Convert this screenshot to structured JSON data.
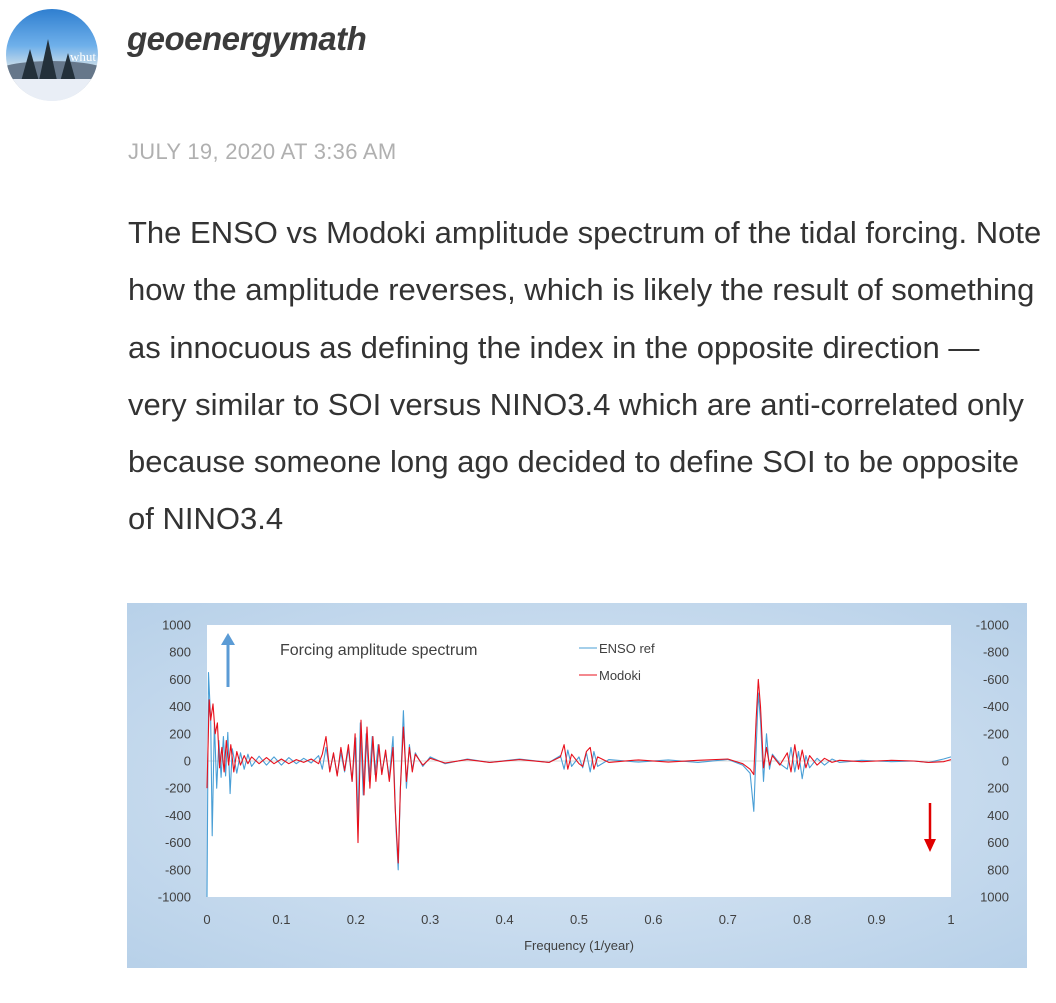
{
  "comment": {
    "author": "geoenergymath",
    "avatar_tag": "whut",
    "date": "JULY 19, 2020 AT 3:36 AM",
    "text": "The ENSO vs Modoki amplitude spectrum of the tidal forcing. Note how the amplitude reverses, which is likely the result of something as innocuous as defining the index in the opposite direction — very similar to SOI versus NINO3.4 which are anti-correlated only because someone long ago decided to define SOI to be opposite of NINO3.4"
  },
  "colors": {
    "enso": "#4a9fd6",
    "modoki": "#e8101c",
    "up_arrow": "#5b9bd5",
    "down_arrow": "#e00000"
  },
  "chart_data": {
    "type": "line",
    "title": "Forcing amplitude spectrum",
    "xlabel": "Frequency (1/year)",
    "ylabel": "",
    "xlim": [
      0,
      1
    ],
    "ylim": [
      -1000,
      1000
    ],
    "ylim_right": [
      1000,
      -1000
    ],
    "x_ticks": [
      "0",
      "0.1",
      "0.2",
      "0.3",
      "0.4",
      "0.5",
      "0.6",
      "0.7",
      "0.8",
      "0.9",
      "1"
    ],
    "y_ticks_left": [
      "1000",
      "800",
      "600",
      "400",
      "200",
      "0",
      "-200",
      "-400",
      "-600",
      "-800",
      "-1000"
    ],
    "y_ticks_right": [
      "-1000",
      "-800",
      "-600",
      "-400",
      "-200",
      "0",
      "200",
      "400",
      "600",
      "800",
      "1000"
    ],
    "grid": false,
    "legend_position": "top-center",
    "series": [
      {
        "name": "ENSO ref",
        "axis": "left",
        "points": [
          [
            0.0,
            -1000
          ],
          [
            0.002,
            650
          ],
          [
            0.005,
            300
          ],
          [
            0.007,
            -550
          ],
          [
            0.01,
            280
          ],
          [
            0.013,
            -200
          ],
          [
            0.016,
            150
          ],
          [
            0.019,
            -120
          ],
          [
            0.022,
            180
          ],
          [
            0.025,
            -110
          ],
          [
            0.028,
            210
          ],
          [
            0.031,
            -240
          ],
          [
            0.034,
            90
          ],
          [
            0.04,
            -90
          ],
          [
            0.045,
            60
          ],
          [
            0.05,
            -60
          ],
          [
            0.055,
            50
          ],
          [
            0.06,
            -40
          ],
          [
            0.07,
            35
          ],
          [
            0.08,
            -30
          ],
          [
            0.09,
            30
          ],
          [
            0.1,
            -30
          ],
          [
            0.11,
            25
          ],
          [
            0.12,
            -20
          ],
          [
            0.13,
            20
          ],
          [
            0.14,
            -15
          ],
          [
            0.15,
            40
          ],
          [
            0.155,
            -60
          ],
          [
            0.16,
            100
          ],
          [
            0.165,
            -70
          ],
          [
            0.17,
            50
          ],
          [
            0.175,
            -100
          ],
          [
            0.18,
            60
          ],
          [
            0.185,
            -80
          ],
          [
            0.19,
            90
          ],
          [
            0.195,
            -150
          ],
          [
            0.2,
            170
          ],
          [
            0.203,
            -450
          ],
          [
            0.206,
            280
          ],
          [
            0.21,
            -250
          ],
          [
            0.214,
            200
          ],
          [
            0.218,
            -150
          ],
          [
            0.222,
            180
          ],
          [
            0.226,
            -100
          ],
          [
            0.23,
            120
          ],
          [
            0.235,
            -80
          ],
          [
            0.24,
            60
          ],
          [
            0.245,
            -120
          ],
          [
            0.25,
            180
          ],
          [
            0.254,
            -500
          ],
          [
            0.257,
            -800
          ],
          [
            0.26,
            -200
          ],
          [
            0.264,
            370
          ],
          [
            0.268,
            -200
          ],
          [
            0.272,
            120
          ],
          [
            0.276,
            -70
          ],
          [
            0.28,
            60
          ],
          [
            0.29,
            -40
          ],
          [
            0.3,
            30
          ],
          [
            0.32,
            -20
          ],
          [
            0.35,
            15
          ],
          [
            0.38,
            -10
          ],
          [
            0.42,
            15
          ],
          [
            0.46,
            -10
          ],
          [
            0.475,
            40
          ],
          [
            0.48,
            -60
          ],
          [
            0.485,
            80
          ],
          [
            0.49,
            -40
          ],
          [
            0.5,
            30
          ],
          [
            0.505,
            -50
          ],
          [
            0.51,
            60
          ],
          [
            0.515,
            -80
          ],
          [
            0.52,
            70
          ],
          [
            0.525,
            -40
          ],
          [
            0.54,
            10
          ],
          [
            0.58,
            -8
          ],
          [
            0.62,
            8
          ],
          [
            0.66,
            -10
          ],
          [
            0.7,
            12
          ],
          [
            0.72,
            -30
          ],
          [
            0.73,
            -90
          ],
          [
            0.735,
            -370
          ],
          [
            0.738,
            80
          ],
          [
            0.741,
            500
          ],
          [
            0.744,
            300
          ],
          [
            0.748,
            -150
          ],
          [
            0.752,
            200
          ],
          [
            0.756,
            -60
          ],
          [
            0.76,
            50
          ],
          [
            0.77,
            -20
          ],
          [
            0.78,
            -60
          ],
          [
            0.785,
            100
          ],
          [
            0.79,
            -80
          ],
          [
            0.795,
            70
          ],
          [
            0.8,
            -130
          ],
          [
            0.805,
            40
          ],
          [
            0.81,
            -50
          ],
          [
            0.82,
            20
          ],
          [
            0.83,
            -30
          ],
          [
            0.84,
            15
          ],
          [
            0.85,
            -10
          ],
          [
            0.88,
            5
          ],
          [
            0.92,
            -5
          ],
          [
            0.95,
            0
          ],
          [
            0.97,
            -10
          ],
          [
            0.99,
            15
          ],
          [
            1.0,
            30
          ]
        ]
      },
      {
        "name": "Modoki",
        "axis": "right",
        "points": [
          [
            0.0,
            200
          ],
          [
            0.003,
            -450
          ],
          [
            0.005,
            -300
          ],
          [
            0.008,
            -420
          ],
          [
            0.011,
            -200
          ],
          [
            0.014,
            -280
          ],
          [
            0.017,
            50
          ],
          [
            0.02,
            -100
          ],
          [
            0.023,
            80
          ],
          [
            0.026,
            -150
          ],
          [
            0.029,
            30
          ],
          [
            0.032,
            -120
          ],
          [
            0.036,
            80
          ],
          [
            0.04,
            -70
          ],
          [
            0.045,
            30
          ],
          [
            0.05,
            -40
          ],
          [
            0.055,
            20
          ],
          [
            0.06,
            -30
          ],
          [
            0.07,
            20
          ],
          [
            0.08,
            -25
          ],
          [
            0.09,
            20
          ],
          [
            0.1,
            -15
          ],
          [
            0.11,
            20
          ],
          [
            0.12,
            -10
          ],
          [
            0.13,
            10
          ],
          [
            0.14,
            -15
          ],
          [
            0.15,
            20
          ],
          [
            0.155,
            -50
          ],
          [
            0.16,
            -180
          ],
          [
            0.165,
            80
          ],
          [
            0.17,
            -60
          ],
          [
            0.175,
            110
          ],
          [
            0.18,
            -100
          ],
          [
            0.185,
            70
          ],
          [
            0.19,
            -120
          ],
          [
            0.195,
            150
          ],
          [
            0.199,
            -200
          ],
          [
            0.203,
            600
          ],
          [
            0.207,
            -300
          ],
          [
            0.211,
            250
          ],
          [
            0.215,
            -250
          ],
          [
            0.219,
            200
          ],
          [
            0.223,
            -180
          ],
          [
            0.227,
            150
          ],
          [
            0.231,
            -120
          ],
          [
            0.235,
            100
          ],
          [
            0.24,
            -80
          ],
          [
            0.245,
            150
          ],
          [
            0.25,
            -100
          ],
          [
            0.253,
            350
          ],
          [
            0.257,
            750
          ],
          [
            0.26,
            200
          ],
          [
            0.264,
            -250
          ],
          [
            0.268,
            150
          ],
          [
            0.272,
            -100
          ],
          [
            0.276,
            80
          ],
          [
            0.28,
            -50
          ],
          [
            0.29,
            30
          ],
          [
            0.3,
            -20
          ],
          [
            0.32,
            15
          ],
          [
            0.35,
            -10
          ],
          [
            0.38,
            10
          ],
          [
            0.42,
            -10
          ],
          [
            0.46,
            10
          ],
          [
            0.475,
            -30
          ],
          [
            0.48,
            -120
          ],
          [
            0.485,
            60
          ],
          [
            0.49,
            -50
          ],
          [
            0.5,
            20
          ],
          [
            0.505,
            40
          ],
          [
            0.51,
            -70
          ],
          [
            0.515,
            -100
          ],
          [
            0.52,
            60
          ],
          [
            0.525,
            -30
          ],
          [
            0.54,
            10
          ],
          [
            0.58,
            -8
          ],
          [
            0.62,
            8
          ],
          [
            0.66,
            -5
          ],
          [
            0.7,
            -15
          ],
          [
            0.72,
            20
          ],
          [
            0.73,
            60
          ],
          [
            0.735,
            100
          ],
          [
            0.738,
            -300
          ],
          [
            0.741,
            -600
          ],
          [
            0.744,
            -400
          ],
          [
            0.748,
            50
          ],
          [
            0.752,
            -100
          ],
          [
            0.756,
            30
          ],
          [
            0.76,
            -40
          ],
          [
            0.77,
            30
          ],
          [
            0.78,
            -60
          ],
          [
            0.785,
            80
          ],
          [
            0.79,
            -120
          ],
          [
            0.795,
            60
          ],
          [
            0.8,
            -80
          ],
          [
            0.805,
            50
          ],
          [
            0.81,
            -40
          ],
          [
            0.82,
            30
          ],
          [
            0.83,
            -20
          ],
          [
            0.84,
            10
          ],
          [
            0.85,
            -5
          ],
          [
            0.88,
            5
          ],
          [
            0.92,
            -5
          ],
          [
            0.95,
            0
          ],
          [
            0.97,
            10
          ],
          [
            0.99,
            5
          ],
          [
            1.0,
            -10
          ]
        ]
      }
    ]
  }
}
